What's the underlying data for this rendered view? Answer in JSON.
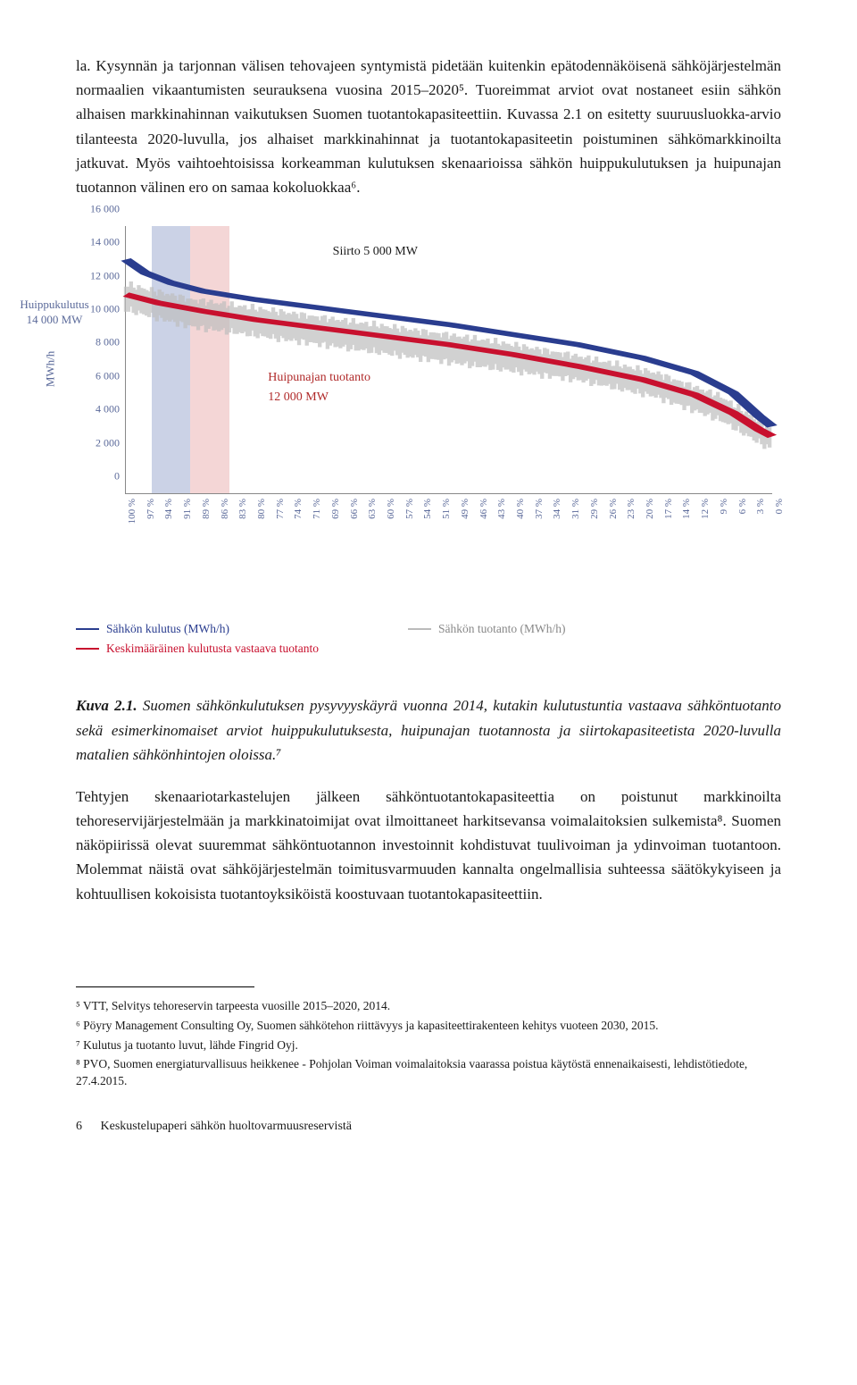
{
  "body": {
    "para1": "la. Kysynnän ja tarjonnan välisen tehovajeen syntymistä pidetään kuitenkin epätodennäköisenä sähköjärjestelmän normaalien vikaantumisten seurauksena vuosina 2015–2020⁵. Tuoreimmat arviot ovat nostaneet esiin sähkön alhaisen markkinahinnan vaikutuksen Suomen tuotantokapasiteettiin. Kuvassa 2.1 on esitetty suuruusluokka-arvio tilanteesta 2020-luvulla, jos alhaiset markkinahinnat ja tuotantokapasiteetin poistuminen sähkömarkkinoilta jatkuvat. Myös vaihtoehtoisissa korkeamman kulutuksen skenaarioissa sähkön huippukulutuksen ja huipunajan tuotannon välinen ero on samaa kokoluokkaa⁶.",
    "para2": "Tehtyjen skenaariotarkastelujen jälkeen sähköntuotantokapasiteettia on poistunut markkinoilta tehoreservijärjestelmään ja markkinatoimijat ovat ilmoittaneet harkitsevansa voimalaitoksien sulkemista⁸. Suomen näköpiirissä olevat suuremmat sähköntuotannon investoinnit kohdistuvat tuulivoiman ja ydinvoiman tuotantoon. Molemmat näistä ovat sähköjärjestelmän toimitusvarmuuden kannalta ongelmallisia suhteessa säätökykyiseen ja kohtuullisen kokoisista tuotantoyksiköistä koostuvaan tuotantokapasiteettiin."
  },
  "caption": {
    "lead": "Kuva 2.1.",
    "text": " Suomen sähkönkulutuksen pysyvyyskäyrä vuonna 2014, kutakin kulutustuntia vastaava sähköntuotanto sekä esimerkinomaiset arviot huippukulutuksesta, huipunajan tuotannosta ja siirtokapasiteetista 2020-luvulla matalien sähkönhintojen oloissa.⁷"
  },
  "chart": {
    "type": "line-duration-curve",
    "y_axis_title": "MWh/h",
    "ylim": [
      0,
      16000
    ],
    "ytick_step": 2000,
    "yticks": [
      "0",
      "2 000",
      "4 000",
      "6 000",
      "8 000",
      "10 000",
      "12 000",
      "14 000",
      "16 000"
    ],
    "xticks": [
      "100 %",
      "97 %",
      "94 %",
      "91 %",
      "89 %",
      "86 %",
      "83 %",
      "80 %",
      "77 %",
      "74 %",
      "71 %",
      "69 %",
      "66 %",
      "63 %",
      "60 %",
      "57 %",
      "54 %",
      "51 %",
      "49 %",
      "46 %",
      "43 %",
      "40 %",
      "37 %",
      "34 %",
      "31 %",
      "29 %",
      "26 %",
      "23 %",
      "20 %",
      "17 %",
      "14 %",
      "12 %",
      "9 %",
      "6 %",
      "3 %",
      "0 %"
    ],
    "side_label_line1": "Huippukulutus",
    "side_label_line2": "14 000 MW",
    "annot_siirto": "Siirto 5 000 MW",
    "annot_huipu_1": "Huipunajan tuotanto",
    "annot_huipu_2": "12 000 MW",
    "colors": {
      "consumption_line": "#2a3d8f",
      "production_line": "#bdbdbd",
      "avg_production_line": "#c8102e",
      "shade_blue": "#6a7fb8",
      "shade_red": "#e08a8a",
      "text_axis": "#5b6a9a",
      "background": "#ffffff"
    },
    "shaded_bands": {
      "blue": {
        "x_start_pct": 4,
        "x_end_pct": 10
      },
      "red": {
        "x_start_pct": 10,
        "x_end_pct": 16
      }
    },
    "series": {
      "consumption": {
        "label": "Sähkön kulutus (MWh/h)",
        "points": [
          [
            0,
            14000
          ],
          [
            3,
            13200
          ],
          [
            7,
            12600
          ],
          [
            12,
            12100
          ],
          [
            20,
            11600
          ],
          [
            30,
            11100
          ],
          [
            40,
            10600
          ],
          [
            50,
            10100
          ],
          [
            60,
            9500
          ],
          [
            70,
            8900
          ],
          [
            80,
            8100
          ],
          [
            88,
            7200
          ],
          [
            94,
            6000
          ],
          [
            98,
            4600
          ],
          [
            100,
            4000
          ]
        ]
      },
      "production": {
        "label": "Sähkön tuotanto (MWh/h)",
        "style": "noisy-gray",
        "envelope_top": [
          [
            0,
            12500
          ],
          [
            10,
            11600
          ],
          [
            25,
            10800
          ],
          [
            40,
            10000
          ],
          [
            55,
            9200
          ],
          [
            70,
            8200
          ],
          [
            82,
            7200
          ],
          [
            92,
            5800
          ],
          [
            100,
            3800
          ]
        ],
        "envelope_bottom": [
          [
            0,
            11000
          ],
          [
            10,
            10000
          ],
          [
            25,
            9200
          ],
          [
            40,
            8400
          ],
          [
            55,
            7600
          ],
          [
            70,
            6800
          ],
          [
            82,
            5800
          ],
          [
            92,
            4400
          ],
          [
            100,
            2600
          ]
        ]
      },
      "avg_production": {
        "label": "Keskimääräinen kulutusta vastaava tuotanto",
        "points": [
          [
            0,
            11900
          ],
          [
            5,
            11400
          ],
          [
            12,
            10900
          ],
          [
            20,
            10400
          ],
          [
            30,
            9900
          ],
          [
            40,
            9400
          ],
          [
            50,
            8900
          ],
          [
            60,
            8300
          ],
          [
            70,
            7600
          ],
          [
            80,
            6800
          ],
          [
            88,
            5900
          ],
          [
            94,
            4800
          ],
          [
            98,
            3800
          ],
          [
            100,
            3400
          ]
        ]
      }
    },
    "legend": [
      {
        "color": "blue",
        "text": "Sähkön kulutus (MWh/h)"
      },
      {
        "color": "gray",
        "text": "Sähkön tuotanto (MWh/h)"
      },
      {
        "color": "red",
        "text": "Keskimääräinen kulutusta vastaava tuotanto"
      }
    ]
  },
  "footnotes": {
    "fn5": "⁵ VTT, Selvitys tehoreservin tarpeesta vuosille 2015–2020, 2014.",
    "fn6": "⁶ Pöyry Management Consulting Oy, Suomen sähkötehon riittävyys ja kapasiteettirakenteen kehitys vuoteen 2030, 2015.",
    "fn7": "⁷ Kulutus ja tuotanto luvut, lähde Fingrid Oyj.",
    "fn8": "⁸ PVO, Suomen energiaturvallisuus heikkenee - Pohjolan Voiman voimalaitoksia vaarassa poistua käytöstä ennenaikaisesti, lehdistötiedote, 27.4.2015."
  },
  "footer": {
    "page": "6",
    "title": "Keskustelupaperi sähkön huoltovarmuusreservistä"
  }
}
